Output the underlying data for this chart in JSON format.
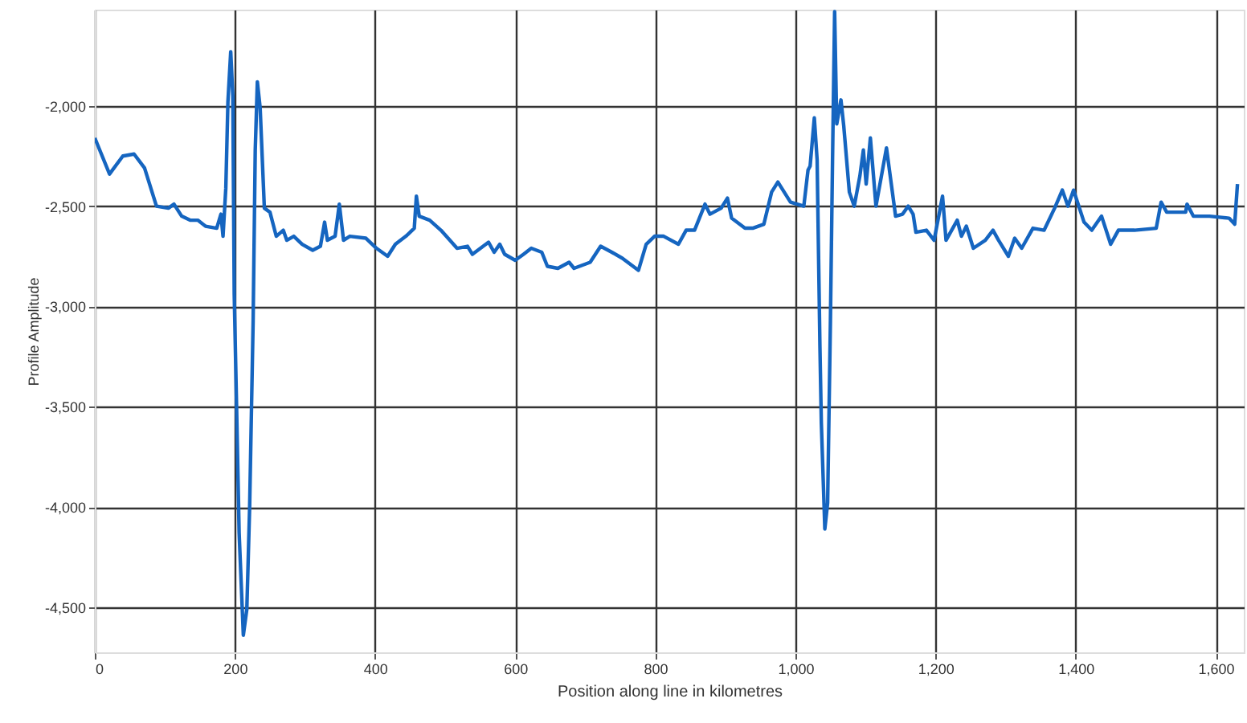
{
  "chart_data": {
    "type": "line",
    "xlabel": "Position along line in kilometres",
    "ylabel": "Profile Amplitude",
    "xlim": [
      0,
      1640
    ],
    "ylim": [
      -4725,
      -1520
    ],
    "xticks": [
      0,
      200,
      400,
      600,
      800,
      {
        "value": 1000,
        "label": "1,000"
      },
      {
        "value": 1200,
        "label": "1,200"
      },
      {
        "value": 1400,
        "label": "1,400"
      },
      {
        "value": 1600,
        "label": "1,600"
      }
    ],
    "yticks": [
      {
        "value": -2000,
        "label": "-2,000"
      },
      {
        "value": -2500,
        "label": "-2,500"
      },
      {
        "value": -3000,
        "label": "-3,000"
      },
      {
        "value": -3500,
        "label": "-3,500"
      },
      {
        "value": -4000,
        "label": "-4,000"
      },
      {
        "value": -4500,
        "label": "-4,500"
      }
    ],
    "grid": true,
    "marker": "none",
    "line_style": "solid",
    "x": [
      0,
      21,
      40,
      56,
      71,
      88,
      105,
      113,
      124,
      136,
      147,
      158,
      174,
      180,
      183,
      187,
      190,
      194,
      197,
      199,
      202,
      206,
      212,
      217,
      221,
      226,
      229,
      232,
      236,
      242,
      250,
      259,
      269,
      274,
      284,
      296,
      311,
      322,
      328,
      332,
      343,
      349,
      355,
      364,
      387,
      402,
      418,
      429,
      444,
      456,
      459,
      463,
      478,
      494,
      517,
      532,
      539,
      562,
      570,
      578,
      585,
      600,
      612,
      623,
      638,
      646,
      661,
      677,
      684,
      707,
      722,
      738,
      753,
      776,
      787,
      799,
      812,
      833,
      844,
      856,
      871,
      878,
      894,
      903,
      909,
      928,
      939,
      955,
      966,
      975,
      993,
      1012,
      1018,
      1021,
      1027,
      1031,
      1035,
      1037,
      1042,
      1046,
      1050,
      1053,
      1056,
      1059,
      1065,
      1069,
      1077,
      1084,
      1092,
      1097,
      1101,
      1107,
      1115,
      1130,
      1143,
      1153,
      1161,
      1168,
      1172,
      1187,
      1198,
      1210,
      1215,
      1231,
      1237,
      1244,
      1254,
      1271,
      1282,
      1290,
      1304,
      1313,
      1323,
      1339,
      1355,
      1370,
      1381,
      1389,
      1397,
      1412,
      1423,
      1437,
      1450,
      1461,
      1484,
      1515,
      1522,
      1530,
      1557,
      1559,
      1568,
      1591,
      1619,
      1627,
      1631
    ],
    "series": [
      {
        "color": "#1565c0",
        "values": [
          -2160,
          -2340,
          -2250,
          -2240,
          -2310,
          -2500,
          -2510,
          -2490,
          -2550,
          -2570,
          -2570,
          -2600,
          -2610,
          -2540,
          -2650,
          -2410,
          -1980,
          -1730,
          -1950,
          -2940,
          -3440,
          -4130,
          -4640,
          -4510,
          -4000,
          -3070,
          -2220,
          -1880,
          -2010,
          -2510,
          -2530,
          -2650,
          -2620,
          -2670,
          -2650,
          -2690,
          -2720,
          -2700,
          -2580,
          -2670,
          -2650,
          -2490,
          -2670,
          -2650,
          -2660,
          -2710,
          -2750,
          -2690,
          -2650,
          -2610,
          -2450,
          -2550,
          -2570,
          -2620,
          -2710,
          -2700,
          -2740,
          -2680,
          -2730,
          -2690,
          -2740,
          -2770,
          -2740,
          -2710,
          -2730,
          -2800,
          -2810,
          -2780,
          -2810,
          -2780,
          -2700,
          -2730,
          -2760,
          -2820,
          -2690,
          -2650,
          -2650,
          -2690,
          -2620,
          -2620,
          -2490,
          -2540,
          -2510,
          -2460,
          -2560,
          -2610,
          -2610,
          -2590,
          -2430,
          -2380,
          -2480,
          -2500,
          -2320,
          -2300,
          -2060,
          -2270,
          -3200,
          -3580,
          -4110,
          -3980,
          -3070,
          -2270,
          -1530,
          -2090,
          -1970,
          -2100,
          -2430,
          -2500,
          -2350,
          -2220,
          -2390,
          -2160,
          -2500,
          -2210,
          -2550,
          -2540,
          -2500,
          -2540,
          -2630,
          -2620,
          -2670,
          -2450,
          -2670,
          -2570,
          -2650,
          -2600,
          -2710,
          -2670,
          -2620,
          -2670,
          -2750,
          -2660,
          -2710,
          -2610,
          -2620,
          -2510,
          -2420,
          -2500,
          -2420,
          -2580,
          -2620,
          -2550,
          -2690,
          -2620,
          -2620,
          -2610,
          -2480,
          -2530,
          -2530,
          -2490,
          -2550,
          -2550,
          -2560,
          -2590,
          -2390
        ]
      }
    ]
  }
}
